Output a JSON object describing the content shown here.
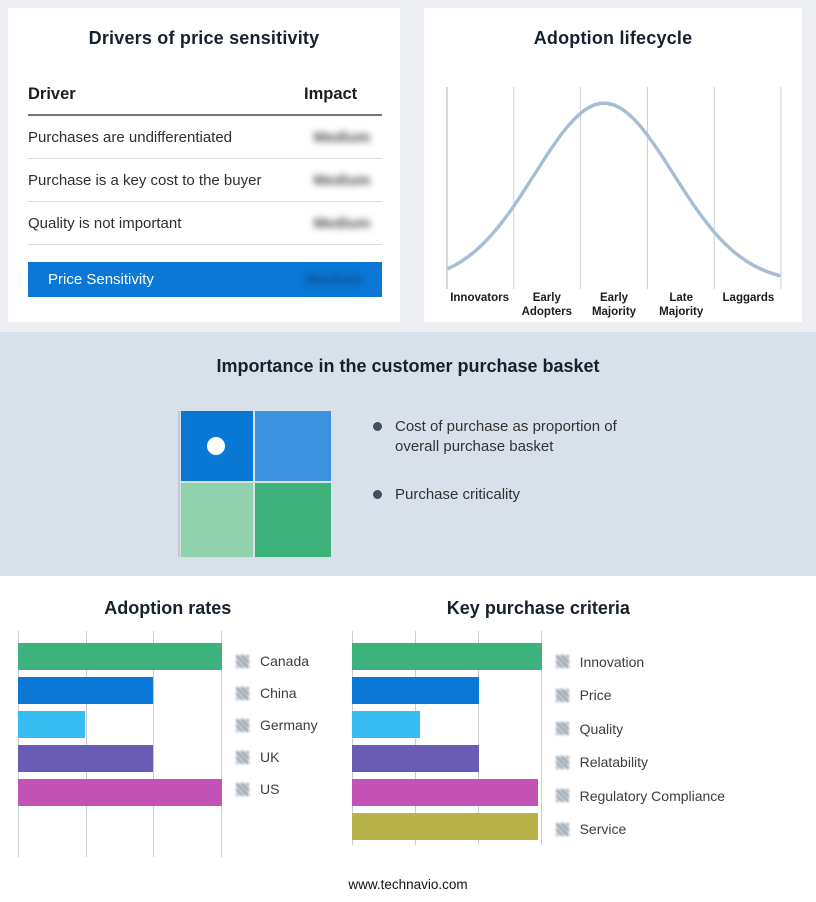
{
  "drivers": {
    "title": "Drivers of price sensitivity",
    "col_driver": "Driver",
    "col_impact": "Impact",
    "rows": [
      {
        "driver": "Purchases are undifferentiated",
        "impact": "Medium"
      },
      {
        "driver": "Purchase is a key cost to the buyer",
        "impact": "Medium"
      },
      {
        "driver": "Quality is not important",
        "impact": "Medium"
      }
    ],
    "highlight": {
      "driver": "Price Sensitivity",
      "impact": "Medium"
    },
    "highlight_color": "#0a78d4",
    "impact_values_redacted": true
  },
  "lifecycle": {
    "title": "Adoption lifecycle",
    "stages": [
      "Innovators",
      "Early Adopters",
      "Early Majority",
      "Late Majority",
      "Laggards"
    ],
    "curve_color": "#a7bdd6"
  },
  "basket": {
    "title": "Importance in the customer purchase basket",
    "bullets": [
      "Cost of purchase as proportion of overall purchase basket",
      "Purchase criticality"
    ],
    "quadrant_colors": {
      "top_left": "#0878d4",
      "top_right": "#3d92de",
      "bottom_left": "#8fd2ad",
      "bottom_right": "#3cb179"
    }
  },
  "footer": {
    "url": "www.technavio.com"
  },
  "chart_data": [
    {
      "type": "line",
      "title": "Adoption lifecycle",
      "shape": "bell-curve",
      "categories": [
        "Innovators",
        "Early Adopters",
        "Early Majority",
        "Late Majority",
        "Laggards"
      ],
      "values_relative": [
        0.08,
        0.55,
        1.0,
        0.55,
        0.05
      ],
      "peak_stage": "Early Majority",
      "grid": true,
      "legend": false,
      "axis_numbers": "none"
    },
    {
      "type": "bar",
      "orientation": "horizontal",
      "title": "Adoption rates",
      "categories": [
        "Canada",
        "China",
        "Germany",
        "UK",
        "US"
      ],
      "values_relative": [
        1.0,
        0.66,
        0.33,
        0.66,
        1.0
      ],
      "colors": [
        "#3eb27c",
        "#0a78d4",
        "#38bdf2",
        "#6a5cb5",
        "#c253b5"
      ],
      "xlim": [
        0,
        1
      ],
      "axis_numbers": "none",
      "grid": true,
      "legend_position": "right",
      "legend_swatch": "blurred-hatch"
    },
    {
      "type": "bar",
      "orientation": "horizontal",
      "title": "Key purchase criteria",
      "categories": [
        "Innovation",
        "Price",
        "Quality",
        "Relatability",
        "Regulatory Compliance",
        "Service"
      ],
      "values_relative": [
        1.0,
        0.67,
        0.36,
        0.67,
        0.98,
        0.98
      ],
      "colors": [
        "#3eb27c",
        "#0a78d4",
        "#38bdf2",
        "#6a5cb5",
        "#c253b5",
        "#b8b44a"
      ],
      "xlim": [
        0,
        1
      ],
      "axis_numbers": "none",
      "grid": true,
      "legend_position": "right",
      "legend_swatch": "blurred-hatch"
    }
  ]
}
